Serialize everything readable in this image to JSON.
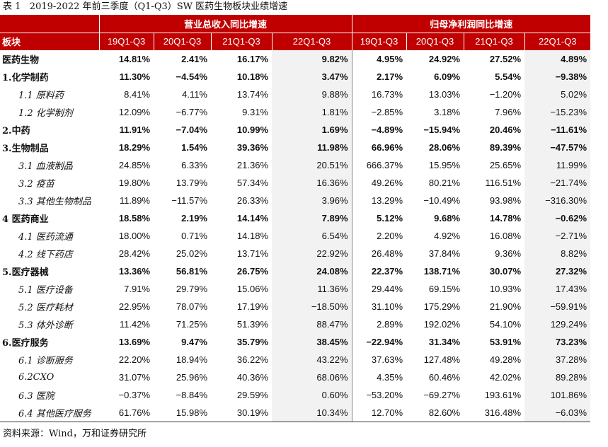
{
  "caption": "表 1   2019-2022 年前三季度（Q1-Q3）SW 医药生物板块业绩增速",
  "table": {
    "row_header_label": "板块",
    "group_headers": [
      "营业总收入同比增速",
      "归母净利润同比增速"
    ],
    "period_headers": [
      "19Q1-Q3",
      "20Q1-Q3",
      "21Q1-Q3",
      "22Q1-Q3"
    ],
    "rows": [
      {
        "name": "医药生物",
        "level": "main",
        "revenue": [
          "14.81%",
          "2.41%",
          "16.17%",
          "9.82%"
        ],
        "profit": [
          "4.95%",
          "24.92%",
          "27.52%",
          "4.89%"
        ]
      },
      {
        "name": "1.化学制药",
        "level": "main",
        "revenue": [
          "11.30%",
          "−4.54%",
          "10.18%",
          "3.47%"
        ],
        "profit": [
          "2.17%",
          "6.09%",
          "5.54%",
          "−9.38%"
        ]
      },
      {
        "name": "1.1 原料药",
        "level": "sub",
        "revenue": [
          "8.41%",
          "4.11%",
          "13.74%",
          "9.88%"
        ],
        "profit": [
          "16.73%",
          "13.03%",
          "−1.20%",
          "5.02%"
        ]
      },
      {
        "name": "1.2 化学制剂",
        "level": "sub",
        "revenue": [
          "12.09%",
          "−6.77%",
          "9.31%",
          "1.81%"
        ],
        "profit": [
          "−2.85%",
          "3.18%",
          "7.96%",
          "−15.23%"
        ]
      },
      {
        "name": "2.中药",
        "level": "main",
        "revenue": [
          "11.91%",
          "−7.04%",
          "10.99%",
          "1.69%"
        ],
        "profit": [
          "−4.89%",
          "−15.94%",
          "20.46%",
          "−11.61%"
        ]
      },
      {
        "name": "3.生物制品",
        "level": "main",
        "revenue": [
          "18.29%",
          "1.54%",
          "39.36%",
          "11.98%"
        ],
        "profit": [
          "66.96%",
          "28.06%",
          "89.39%",
          "−47.57%"
        ]
      },
      {
        "name": "3.1 血液制品",
        "level": "sub",
        "revenue": [
          "24.85%",
          "6.33%",
          "21.36%",
          "20.51%"
        ],
        "profit": [
          "666.37%",
          "15.95%",
          "25.65%",
          "11.99%"
        ]
      },
      {
        "name": "3.2 疫苗",
        "level": "sub",
        "revenue": [
          "19.80%",
          "13.79%",
          "57.34%",
          "16.36%"
        ],
        "profit": [
          "49.26%",
          "80.21%",
          "116.51%",
          "−21.74%"
        ]
      },
      {
        "name": "3.3 其他生物制品",
        "level": "sub",
        "revenue": [
          "11.89%",
          "−11.57%",
          "26.33%",
          "3.96%"
        ],
        "profit": [
          "13.29%",
          "−10.49%",
          "93.98%",
          "−316.30%"
        ]
      },
      {
        "name": "4 医药商业",
        "level": "main",
        "revenue": [
          "18.58%",
          "2.19%",
          "14.14%",
          "7.89%"
        ],
        "profit": [
          "5.12%",
          "9.68%",
          "14.78%",
          "−0.62%"
        ]
      },
      {
        "name": "4.1 医药流通",
        "level": "sub",
        "revenue": [
          "18.00%",
          "0.71%",
          "14.18%",
          "6.54%"
        ],
        "profit": [
          "2.20%",
          "4.92%",
          "16.08%",
          "−2.71%"
        ]
      },
      {
        "name": "4.2 线下药店",
        "level": "sub",
        "revenue": [
          "28.42%",
          "25.02%",
          "13.71%",
          "22.92%"
        ],
        "profit": [
          "26.48%",
          "37.84%",
          "9.36%",
          "8.82%"
        ]
      },
      {
        "name": "5.医疗器械",
        "level": "main",
        "revenue": [
          "13.36%",
          "56.81%",
          "26.75%",
          "24.08%"
        ],
        "profit": [
          "22.37%",
          "138.71%",
          "30.07%",
          "27.32%"
        ]
      },
      {
        "name": "5.1 医疗设备",
        "level": "sub",
        "revenue": [
          "7.91%",
          "29.79%",
          "15.06%",
          "11.36%"
        ],
        "profit": [
          "29.44%",
          "69.15%",
          "10.93%",
          "17.43%"
        ]
      },
      {
        "name": "5.2 医疗耗材",
        "level": "sub",
        "revenue": [
          "22.95%",
          "78.07%",
          "17.19%",
          "−18.50%"
        ],
        "profit": [
          "31.10%",
          "175.29%",
          "21.90%",
          "−59.91%"
        ]
      },
      {
        "name": "5.3 体外诊断",
        "level": "sub",
        "revenue": [
          "11.42%",
          "71.25%",
          "51.39%",
          "88.47%"
        ],
        "profit": [
          "2.89%",
          "192.02%",
          "54.10%",
          "129.24%"
        ]
      },
      {
        "name": "6.医疗服务",
        "level": "main",
        "revenue": [
          "13.69%",
          "9.47%",
          "35.79%",
          "38.45%"
        ],
        "profit": [
          "−22.94%",
          "31.34%",
          "53.91%",
          "73.23%"
        ]
      },
      {
        "name": "6.1 诊断服务",
        "level": "sub",
        "revenue": [
          "22.20%",
          "18.94%",
          "36.22%",
          "43.22%"
        ],
        "profit": [
          "37.63%",
          "127.48%",
          "49.28%",
          "37.28%"
        ]
      },
      {
        "name": "6.2CXO",
        "level": "sub",
        "revenue": [
          "31.07%",
          "25.96%",
          "40.36%",
          "68.06%"
        ],
        "profit": [
          "4.35%",
          "60.46%",
          "42.02%",
          "89.28%"
        ]
      },
      {
        "name": "6.3 医院",
        "level": "sub",
        "revenue": [
          "−0.37%",
          "−8.84%",
          "29.59%",
          "0.60%"
        ],
        "profit": [
          "−53.20%",
          "−69.27%",
          "193.61%",
          "101.86%"
        ]
      },
      {
        "name": "6.4 其他医疗服务",
        "level": "sub",
        "revenue": [
          "61.76%",
          "15.98%",
          "30.19%",
          "10.34%"
        ],
        "profit": [
          "12.70%",
          "82.60%",
          "316.48%",
          "−6.03%"
        ]
      }
    ]
  },
  "source": "资料来源：Wind，万和证券研究所",
  "colors": {
    "header_bg": "#c00000",
    "header_text": "#ffffff",
    "highlight_col": "#f2f2f2"
  }
}
